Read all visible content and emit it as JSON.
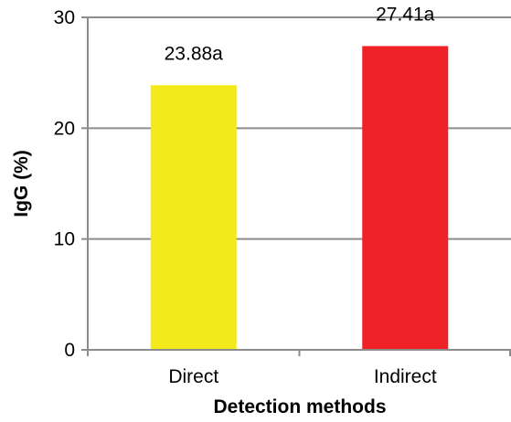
{
  "chart_data": {
    "type": "bar",
    "categories": [
      "Direct",
      "Indirect"
    ],
    "values": [
      23.88,
      27.41
    ],
    "data_labels": [
      "23.88a",
      "27.41a"
    ],
    "colors": [
      "#f2ea1a",
      "#ee2127"
    ],
    "title": "",
    "xlabel": "Detection methods",
    "ylabel": "IgG (%)",
    "ylim": [
      0,
      30
    ],
    "yticks": [
      0,
      10,
      20,
      30
    ],
    "grid": true,
    "legend": "none"
  }
}
